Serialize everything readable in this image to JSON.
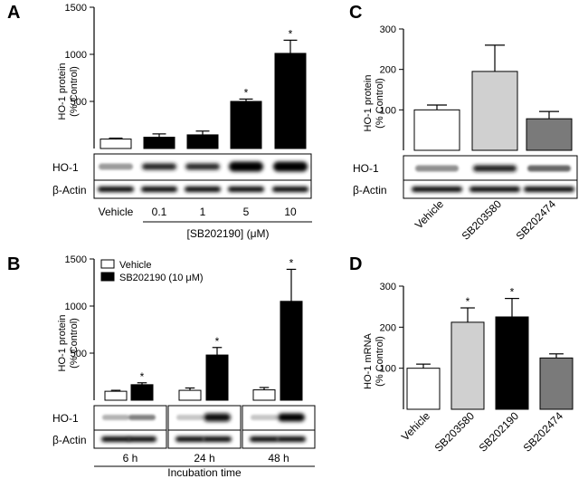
{
  "chart_data": [
    {
      "panel": "A",
      "type": "bar",
      "ylabel": [
        "HO-1 protein",
        "(% Control)"
      ],
      "yticks": [
        500,
        1000,
        1500
      ],
      "ylim": [
        0,
        1500
      ],
      "categories": [
        "Vehicle",
        "0.1",
        "1",
        "5",
        "10"
      ],
      "values": [
        100,
        120,
        145,
        500,
        1010
      ],
      "errors": [
        10,
        35,
        40,
        25,
        140
      ],
      "significant": [
        false,
        false,
        false,
        true,
        true
      ],
      "colors": [
        "#ffffff",
        "#000000",
        "#000000",
        "#000000",
        "#000000"
      ],
      "xlabel": "[SB202190] (μM)",
      "blot_labels": [
        "HO-1",
        "β-Actin"
      ]
    },
    {
      "panel": "B",
      "type": "bar",
      "ylabel": [
        "HO-1 protein",
        "(% Control)"
      ],
      "yticks": [
        500,
        1000,
        1500
      ],
      "ylim": [
        0,
        1500
      ],
      "categories": [
        "6 h",
        "24 h",
        "48 h"
      ],
      "series": [
        {
          "name": "Vehicle",
          "values": [
            95,
            105,
            110
          ],
          "errors": [
            10,
            25,
            25
          ],
          "significant": [
            false,
            false,
            false
          ],
          "color": "#ffffff"
        },
        {
          "name": "SB202190 (10 μM)",
          "values": [
            165,
            480,
            1050
          ],
          "errors": [
            20,
            80,
            340
          ],
          "significant": [
            true,
            true,
            true
          ],
          "color": "#000000"
        }
      ],
      "xlabel": "Incubation time",
      "blot_labels": [
        "HO-1",
        "β-Actin"
      ]
    },
    {
      "panel": "C",
      "type": "bar",
      "ylabel": [
        "HO-1 protein",
        "(% Control)"
      ],
      "yticks": [
        100,
        200,
        300
      ],
      "ylim": [
        0,
        300
      ],
      "categories": [
        "Vehicle",
        "SB203580",
        "SB202474"
      ],
      "values": [
        100,
        195,
        78
      ],
      "errors": [
        12,
        65,
        18
      ],
      "significant": [
        false,
        false,
        false
      ],
      "colors": [
        "#ffffff",
        "#d0d0d0",
        "#7a7a7a"
      ],
      "blot_labels": [
        "HO-1",
        "β-Actin"
      ]
    },
    {
      "panel": "D",
      "type": "bar",
      "ylabel": [
        "HO-1 mRNA",
        "(% Control)"
      ],
      "yticks": [
        100,
        200,
        300
      ],
      "ylim": [
        0,
        300
      ],
      "categories": [
        "Vehicle",
        "SB203580",
        "SB202190",
        "SB202474"
      ],
      "values": [
        100,
        212,
        225,
        125
      ],
      "errors": [
        10,
        35,
        45,
        10
      ],
      "significant": [
        false,
        true,
        true,
        false
      ],
      "colors": [
        "#ffffff",
        "#d0d0d0",
        "#000000",
        "#7a7a7a"
      ]
    }
  ],
  "star": "*"
}
